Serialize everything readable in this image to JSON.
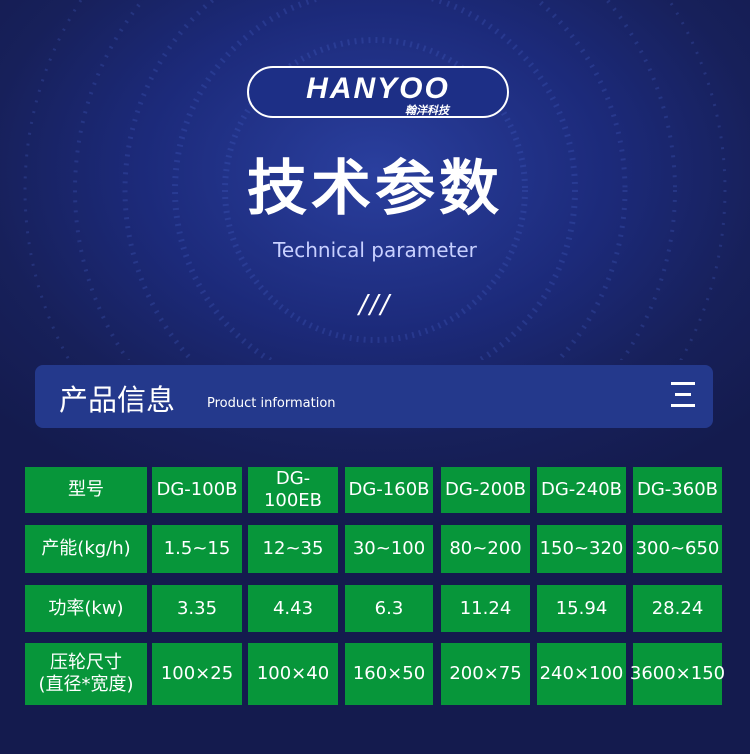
{
  "brand": {
    "name": "HANYOO",
    "name_cn": "翰洋科技"
  },
  "title": "技术参数",
  "subtitle": "Technical parameter",
  "decor": "///",
  "section": {
    "title_cn": "产品信息",
    "title_en": "Product information",
    "menu_icon": "menu-icon"
  },
  "table": {
    "rows": [
      [
        "型号",
        "DG-100B",
        "DG-100EB",
        "DG-160B",
        "DG-200B",
        "DG-240B",
        "DG-360B"
      ],
      [
        "产能(kg/h)",
        "1.5~15",
        "12~35",
        "30~100",
        "80~200",
        "150~320",
        "300~650"
      ],
      [
        "功率(kw)",
        "3.35",
        "4.43",
        "6.3",
        "11.24",
        "15.94",
        "28.24"
      ],
      [
        "压轮尺寸\n(直径*宽度)",
        "100×25",
        "100×40",
        "160×50",
        "200×75",
        "240×100",
        "3600×150"
      ]
    ]
  },
  "colors": {
    "background": "#17205a",
    "cell": "#07963a",
    "banner": "#24398c"
  }
}
